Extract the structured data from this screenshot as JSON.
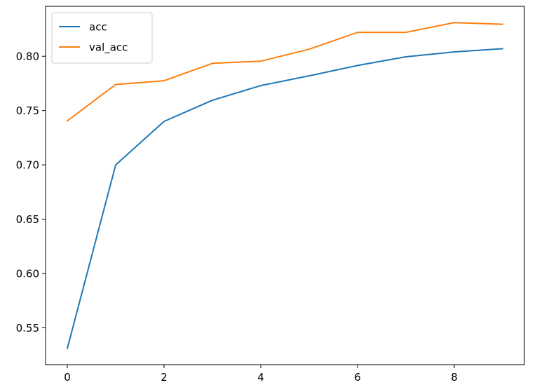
{
  "chart_data": {
    "type": "line",
    "x": [
      0,
      1,
      2,
      3,
      4,
      5,
      6,
      7,
      8,
      9
    ],
    "series": [
      {
        "name": "acc",
        "color": "#1f77b4",
        "values": [
          0.531,
          0.7,
          0.74,
          0.7595,
          0.773,
          0.782,
          0.7915,
          0.7995,
          0.804,
          0.807
        ]
      },
      {
        "name": "val_acc",
        "color": "#ff7f0e",
        "values": [
          0.7405,
          0.774,
          0.7775,
          0.7935,
          0.7955,
          0.8065,
          0.822,
          0.822,
          0.831,
          0.8295
        ]
      }
    ],
    "xlim": [
      -0.45,
      9.45
    ],
    "ylim": [
      0.516,
      0.846
    ],
    "x_ticks": [
      0,
      2,
      4,
      6,
      8
    ],
    "x_tick_labels": [
      "0",
      "2",
      "4",
      "6",
      "8"
    ],
    "y_ticks": [
      0.55,
      0.6,
      0.65,
      0.7,
      0.75,
      0.8
    ],
    "y_tick_labels": [
      "0.55",
      "0.60",
      "0.65",
      "0.70",
      "0.75",
      "0.80"
    ],
    "title": "",
    "xlabel": "",
    "ylabel": "",
    "grid": false,
    "legend_position": "upper left"
  }
}
